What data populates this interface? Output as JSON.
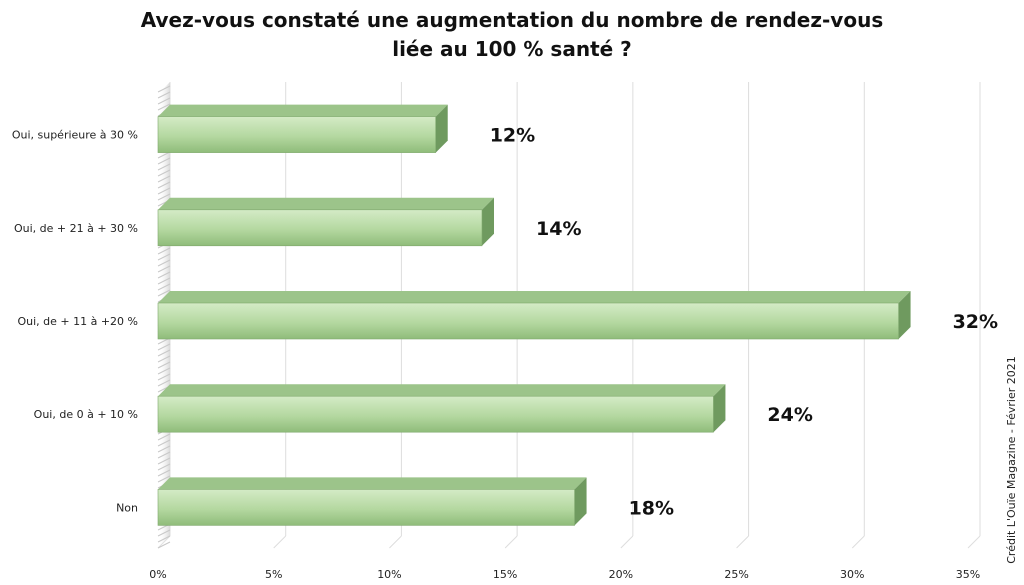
{
  "chart_data": {
    "type": "bar",
    "orientation": "horizontal",
    "title_lines": [
      "Avez-vous constaté une augmentation du nombre de rendez-vous",
      "liée au 100 % santé ?"
    ],
    "categories": [
      "Oui, supérieure à 30 %",
      "Oui, de + 21 à + 30 %",
      "Oui, de + 11 à +20 %",
      "Oui, de 0 à + 10 %",
      "Non"
    ],
    "values": [
      12,
      14,
      32,
      24,
      18
    ],
    "value_labels": [
      "12%",
      "14%",
      "32%",
      "24%",
      "18%"
    ],
    "xlim": [
      0,
      35
    ],
    "x_ticks": [
      0,
      5,
      10,
      15,
      20,
      25,
      30,
      35
    ],
    "x_tick_labels": [
      "0%",
      "5%",
      "10%",
      "15%",
      "20%",
      "25%",
      "30%",
      "35%"
    ],
    "grid": true,
    "style": "3d",
    "colors": {
      "bar_light": "#d4ebc6",
      "bar_mid": "#b4d8a0",
      "bar_dark": "#8fbc7a",
      "bar_top": "#9cc48a",
      "bar_side": "#6f9a5f",
      "grid": "#dddddd"
    }
  },
  "credit": "Crédit L'Ouïe Magazine - Février 2021"
}
